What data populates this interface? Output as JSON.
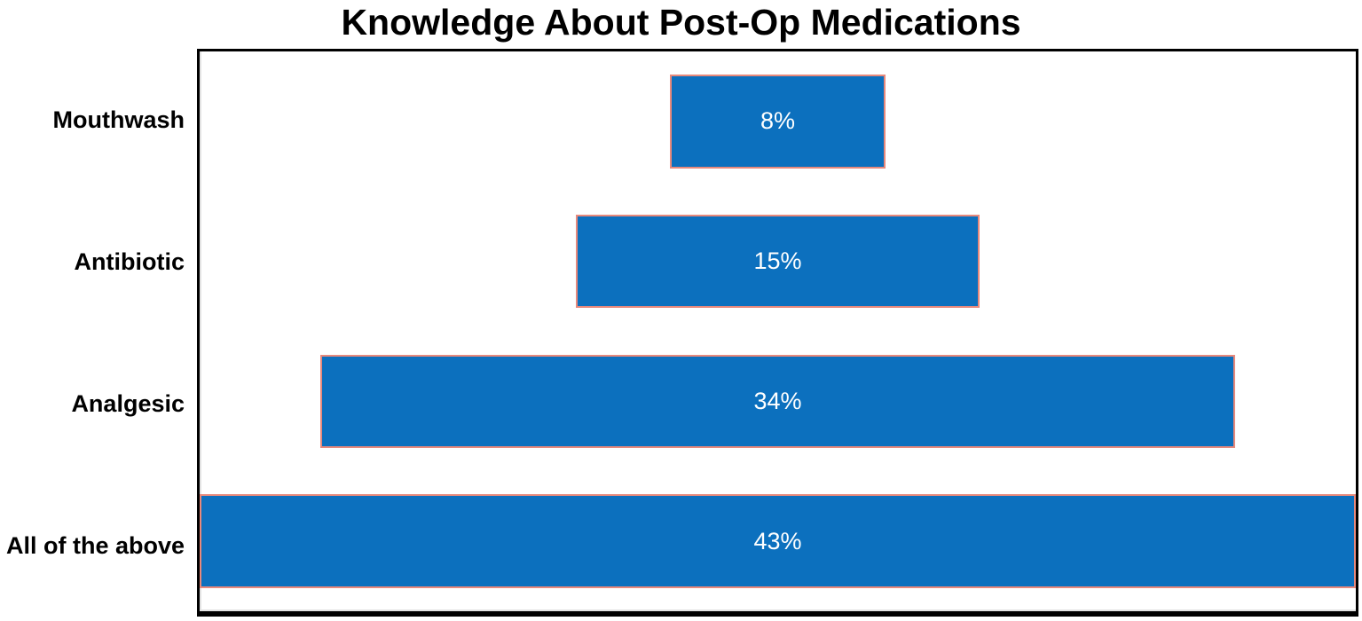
{
  "title": "Knowledge About Post-Op Medications",
  "chart_data": {
    "type": "bar",
    "subtype": "funnel",
    "orientation": "horizontal-centered",
    "title": "Knowledge About Post-Op Medications",
    "categories": [
      "Mouthwash",
      "Antibiotic",
      "Analgesic",
      "All of the above"
    ],
    "values": [
      8,
      15,
      34,
      43
    ],
    "data_labels": [
      "8%",
      "15%",
      "34%",
      "43%"
    ],
    "xlabel": "",
    "ylabel": "",
    "xlim": [
      0,
      43
    ],
    "grid": false,
    "legend": false,
    "bar_color": "#0c70be",
    "bar_border_color": "#e8897c",
    "data_label_color": "#ffffff",
    "category_label_color": "#000000",
    "plot_border_color": "#000000",
    "background_color": "#ffffff"
  }
}
